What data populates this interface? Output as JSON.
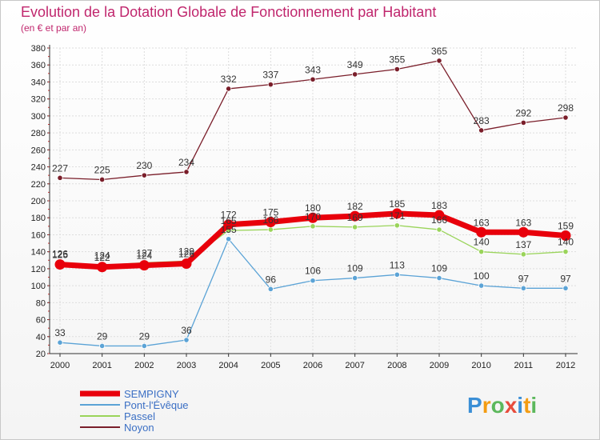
{
  "header": {
    "title": "Evolution de la Dotation Globale de Fonctionnement par Habitant",
    "subtitle": "(en € et par an)"
  },
  "logo": {
    "text": "Proxiti",
    "letters": [
      "P",
      "r",
      "o",
      "x",
      "i",
      "t",
      "i"
    ],
    "colors": [
      "#3b8fd6",
      "#f39c12",
      "#5cb85c",
      "#e74c3c",
      "#3b8fd6",
      "#f39c12",
      "#5cb85c"
    ]
  },
  "colors": {
    "title": "#c0266d",
    "legend_text": "#3b6fc4",
    "grid": "#dddddd",
    "axis": "#333333"
  },
  "chart_data": {
    "type": "line",
    "x": [
      2000,
      2001,
      2002,
      2003,
      2004,
      2005,
      2006,
      2007,
      2008,
      2009,
      2010,
      2011,
      2012
    ],
    "ylim": [
      20,
      380
    ],
    "yticks": [
      20,
      40,
      60,
      80,
      100,
      120,
      140,
      160,
      180,
      200,
      220,
      240,
      260,
      280,
      300,
      320,
      340,
      360,
      380
    ],
    "grid": true,
    "legend_position": "bottom-left",
    "series": [
      {
        "name": "Noyon",
        "color": "#7a1e2a",
        "width": 1.3,
        "values": [
          227,
          225,
          230,
          234,
          332,
          337,
          343,
          349,
          355,
          365,
          283,
          292,
          298
        ],
        "labels": [
          "227",
          "225",
          "230",
          "234",
          "332",
          "337",
          "343",
          "349",
          "355",
          "365",
          "283",
          "292",
          "298"
        ]
      },
      {
        "name": "Pont-l'Évêque",
        "color": "#5ba3d6",
        "width": 1.3,
        "values": [
          33,
          29,
          29,
          36,
          155,
          96,
          106,
          109,
          113,
          109,
          100,
          97,
          97
        ],
        "labels": [
          "33",
          "29",
          "29",
          "36",
          "155",
          "96",
          "106",
          "109",
          "113",
          "109",
          "100",
          "97",
          "97"
        ]
      },
      {
        "name": "Passel",
        "color": "#9ad45a",
        "width": 1.3,
        "values": [
          126,
          124,
          127,
          129,
          165,
          166,
          170,
          169,
          171,
          166,
          140,
          137,
          140
        ],
        "labels": [
          "126",
          "124",
          "127",
          "129",
          "165",
          "166",
          "170",
          "169",
          "171",
          "166",
          "140",
          "137",
          "140"
        ]
      },
      {
        "name": "SEMPIGNY",
        "color": "#e8000b",
        "width": 7,
        "values": [
          125,
          122,
          124,
          126,
          172,
          175,
          180,
          182,
          185,
          183,
          163,
          163,
          159
        ],
        "labels": [
          "125",
          "122",
          "124",
          "126",
          "172",
          "175",
          "180",
          "182",
          "185",
          "183",
          "163",
          "163",
          "159"
        ]
      }
    ],
    "legend": [
      {
        "name": "SEMPIGNY",
        "color": "#e8000b",
        "width": 7
      },
      {
        "name": "Pont-l'Évêque",
        "color": "#5ba3d6",
        "width": 2
      },
      {
        "name": "Passel",
        "color": "#9ad45a",
        "width": 2
      },
      {
        "name": "Noyon",
        "color": "#7a1e2a",
        "width": 2
      }
    ]
  }
}
